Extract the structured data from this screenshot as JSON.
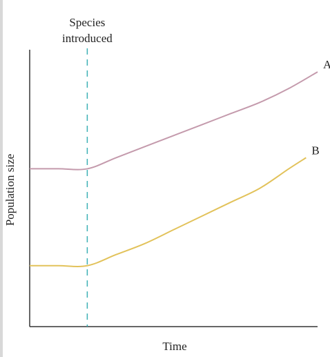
{
  "chart_data": {
    "type": "line",
    "title": "",
    "xlabel": "Time",
    "ylabel": "Population size",
    "annotations": [
      {
        "text_line1": "Species",
        "text_line2": "introduced",
        "x": 2
      }
    ],
    "xlim": [
      0,
      10
    ],
    "ylim": [
      0,
      10
    ],
    "grid": false,
    "series": [
      {
        "name": "A",
        "color": "#c49aac",
        "x": [
          0,
          1,
          2,
          3,
          4,
          5,
          6,
          7,
          8,
          9,
          10
        ],
        "y": [
          5.7,
          5.7,
          5.7,
          6.1,
          6.5,
          6.9,
          7.3,
          7.7,
          8.1,
          8.6,
          9.2
        ]
      },
      {
        "name": "B",
        "color": "#e2c25a",
        "x": [
          0,
          1,
          2,
          3,
          4,
          5,
          6,
          7,
          8,
          9,
          9.6
        ],
        "y": [
          2.2,
          2.2,
          2.2,
          2.6,
          3.0,
          3.5,
          4.0,
          4.5,
          5.0,
          5.7,
          6.1
        ]
      }
    ]
  }
}
